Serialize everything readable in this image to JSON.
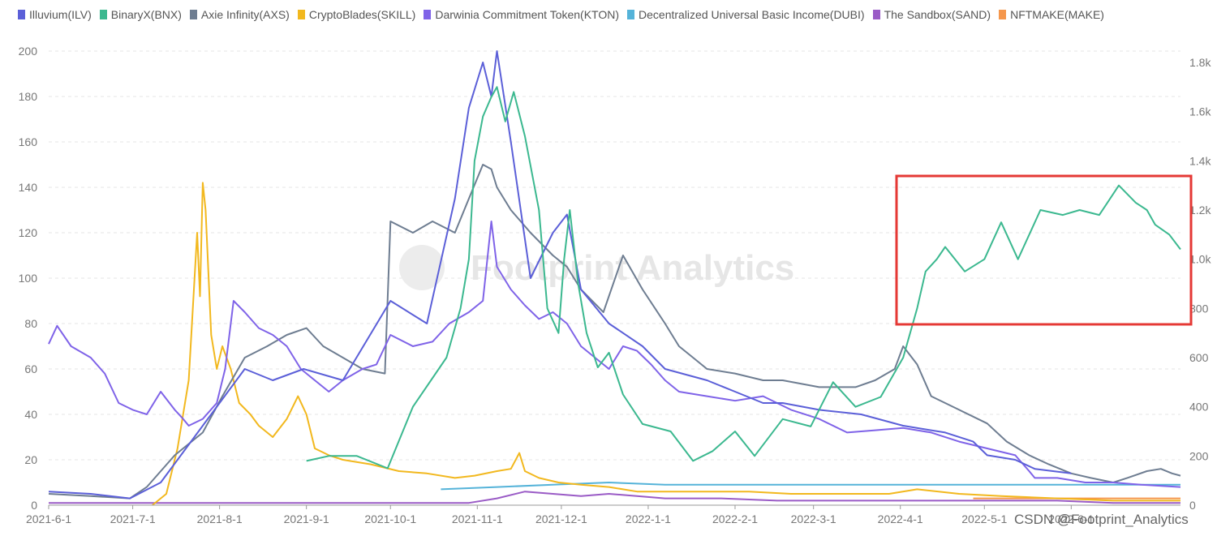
{
  "chart_data": {
    "type": "line",
    "x_labels": [
      "2021-6-1",
      "2021-7-1",
      "2021-8-1",
      "2021-9-1",
      "2021-10-1",
      "2021-11-1",
      "2021-12-1",
      "2022-1-1",
      "2022-2-1",
      "2022-3-1",
      "2022-4-1",
      "2022-5-1",
      "2022-6-1"
    ],
    "y_left": {
      "ticks": [
        "0",
        "20",
        "40",
        "60",
        "80",
        "100",
        "120",
        "140",
        "160",
        "180",
        "200"
      ],
      "range": [
        0,
        200
      ]
    },
    "y_right": {
      "ticks": [
        "0",
        "200",
        "400",
        "600",
        "800",
        "1.0k",
        "1.2k",
        "1.4k",
        "1.6k",
        "1.8k"
      ],
      "range": [
        0,
        1800
      ]
    },
    "grid": true,
    "legend_position": "top",
    "series": [
      {
        "name": "Illuvium(ILV)",
        "color": "#5b5fd8",
        "axis": "left",
        "points": [
          [
            0,
            6
          ],
          [
            15,
            5
          ],
          [
            29,
            3
          ],
          [
            40,
            10
          ],
          [
            55,
            35
          ],
          [
            70,
            60
          ],
          [
            80,
            55
          ],
          [
            91,
            60
          ],
          [
            105,
            55
          ],
          [
            122,
            90
          ],
          [
            135,
            80
          ],
          [
            145,
            135
          ],
          [
            150,
            175
          ],
          [
            155,
            195
          ],
          [
            158,
            180
          ],
          [
            160,
            200
          ],
          [
            165,
            160
          ],
          [
            172,
            100
          ],
          [
            180,
            120
          ],
          [
            185,
            128
          ],
          [
            190,
            95
          ],
          [
            200,
            80
          ],
          [
            212,
            70
          ],
          [
            220,
            60
          ],
          [
            235,
            55
          ],
          [
            245,
            50
          ],
          [
            255,
            45
          ],
          [
            262,
            45
          ],
          [
            275,
            42
          ],
          [
            290,
            40
          ],
          [
            305,
            35
          ],
          [
            320,
            32
          ],
          [
            330,
            28
          ],
          [
            335,
            22
          ],
          [
            345,
            20
          ],
          [
            352,
            16
          ],
          [
            365,
            14
          ]
        ]
      },
      {
        "name": "BinaryX(BNX)",
        "color": "#3bb88f",
        "axis": "right",
        "points": [
          [
            92,
            180
          ],
          [
            100,
            200
          ],
          [
            110,
            200
          ],
          [
            121,
            150
          ],
          [
            130,
            400
          ],
          [
            142,
            600
          ],
          [
            147,
            800
          ],
          [
            150,
            1000
          ],
          [
            152,
            1400
          ],
          [
            155,
            1580
          ],
          [
            158,
            1660
          ],
          [
            160,
            1700
          ],
          [
            163,
            1560
          ],
          [
            166,
            1680
          ],
          [
            170,
            1500
          ],
          [
            175,
            1200
          ],
          [
            178,
            800
          ],
          [
            182,
            700
          ],
          [
            184,
            1000
          ],
          [
            186,
            1200
          ],
          [
            189,
            900
          ],
          [
            192,
            700
          ],
          [
            196,
            560
          ],
          [
            200,
            620
          ],
          [
            205,
            450
          ],
          [
            212,
            330
          ],
          [
            222,
            300
          ],
          [
            230,
            180
          ],
          [
            237,
            220
          ],
          [
            245,
            300
          ],
          [
            252,
            200
          ],
          [
            262,
            350
          ],
          [
            272,
            320
          ],
          [
            280,
            500
          ],
          [
            288,
            400
          ],
          [
            297,
            440
          ],
          [
            305,
            600
          ],
          [
            310,
            800
          ],
          [
            313,
            950
          ],
          [
            317,
            1000
          ],
          [
            320,
            1050
          ],
          [
            327,
            950
          ],
          [
            334,
            1000
          ],
          [
            340,
            1150
          ],
          [
            346,
            1000
          ],
          [
            354,
            1200
          ],
          [
            362,
            1180
          ],
          [
            368,
            1200
          ],
          [
            375,
            1180
          ],
          [
            382,
            1300
          ],
          [
            388,
            1230
          ],
          [
            392,
            1200
          ],
          [
            395,
            1140
          ],
          [
            400,
            1100
          ],
          [
            404,
            1040
          ]
        ]
      },
      {
        "name": "Axie Infinity(AXS)",
        "color": "#6e7d91",
        "axis": "left",
        "points": [
          [
            0,
            5
          ],
          [
            15,
            4
          ],
          [
            29,
            3
          ],
          [
            35,
            8
          ],
          [
            45,
            22
          ],
          [
            55,
            32
          ],
          [
            62,
            48
          ],
          [
            70,
            65
          ],
          [
            78,
            70
          ],
          [
            85,
            75
          ],
          [
            92,
            78
          ],
          [
            98,
            70
          ],
          [
            105,
            65
          ],
          [
            112,
            60
          ],
          [
            120,
            58
          ],
          [
            122,
            125
          ],
          [
            130,
            120
          ],
          [
            137,
            125
          ],
          [
            145,
            120
          ],
          [
            150,
            135
          ],
          [
            155,
            150
          ],
          [
            158,
            148
          ],
          [
            160,
            140
          ],
          [
            165,
            130
          ],
          [
            172,
            120
          ],
          [
            180,
            110
          ],
          [
            185,
            105
          ],
          [
            190,
            95
          ],
          [
            198,
            85
          ],
          [
            205,
            110
          ],
          [
            212,
            95
          ],
          [
            220,
            80
          ],
          [
            225,
            70
          ],
          [
            230,
            65
          ],
          [
            235,
            60
          ],
          [
            245,
            58
          ],
          [
            255,
            55
          ],
          [
            262,
            55
          ],
          [
            275,
            52
          ],
          [
            288,
            52
          ],
          [
            295,
            55
          ],
          [
            302,
            60
          ],
          [
            305,
            70
          ],
          [
            310,
            62
          ],
          [
            315,
            48
          ],
          [
            325,
            42
          ],
          [
            335,
            36
          ],
          [
            342,
            28
          ],
          [
            350,
            22
          ],
          [
            357,
            18
          ],
          [
            365,
            14
          ],
          [
            372,
            12
          ],
          [
            380,
            10
          ],
          [
            385,
            12
          ],
          [
            392,
            15
          ],
          [
            397,
            16
          ],
          [
            401,
            14
          ],
          [
            404,
            13
          ]
        ]
      },
      {
        "name": "CryptoBlades(SKILL)",
        "color": "#f2b81e",
        "axis": "left",
        "points": [
          [
            37,
            0
          ],
          [
            42,
            5
          ],
          [
            46,
            25
          ],
          [
            50,
            55
          ],
          [
            53,
            120
          ],
          [
            54,
            92
          ],
          [
            55,
            142
          ],
          [
            56,
            130
          ],
          [
            58,
            75
          ],
          [
            60,
            60
          ],
          [
            62,
            70
          ],
          [
            65,
            60
          ],
          [
            68,
            45
          ],
          [
            72,
            40
          ],
          [
            75,
            35
          ],
          [
            80,
            30
          ],
          [
            85,
            38
          ],
          [
            89,
            48
          ],
          [
            92,
            40
          ],
          [
            95,
            25
          ],
          [
            100,
            22
          ],
          [
            105,
            20
          ],
          [
            115,
            18
          ],
          [
            125,
            15
          ],
          [
            135,
            14
          ],
          [
            145,
            12
          ],
          [
            152,
            13
          ],
          [
            160,
            15
          ],
          [
            165,
            16
          ],
          [
            168,
            23
          ],
          [
            170,
            15
          ],
          [
            175,
            12
          ],
          [
            182,
            10
          ],
          [
            190,
            9
          ],
          [
            200,
            8
          ],
          [
            210,
            6
          ],
          [
            220,
            6
          ],
          [
            235,
            6
          ],
          [
            250,
            6
          ],
          [
            265,
            5
          ],
          [
            285,
            5
          ],
          [
            300,
            5
          ],
          [
            310,
            7
          ],
          [
            325,
            5
          ],
          [
            340,
            4
          ],
          [
            360,
            3
          ],
          [
            380,
            2
          ],
          [
            404,
            2
          ]
        ]
      },
      {
        "name": "Darwinia Commitment Token(KTON)",
        "color": "#7f63e8",
        "axis": "left",
        "points": [
          [
            0,
            71
          ],
          [
            3,
            79
          ],
          [
            8,
            70
          ],
          [
            15,
            65
          ],
          [
            20,
            58
          ],
          [
            25,
            45
          ],
          [
            30,
            42
          ],
          [
            35,
            40
          ],
          [
            40,
            50
          ],
          [
            45,
            42
          ],
          [
            48,
            38
          ],
          [
            50,
            35
          ],
          [
            55,
            38
          ],
          [
            60,
            45
          ],
          [
            63,
            60
          ],
          [
            66,
            90
          ],
          [
            70,
            85
          ],
          [
            75,
            78
          ],
          [
            80,
            75
          ],
          [
            85,
            70
          ],
          [
            90,
            60
          ],
          [
            95,
            55
          ],
          [
            100,
            50
          ],
          [
            105,
            55
          ],
          [
            112,
            60
          ],
          [
            117,
            62
          ],
          [
            122,
            75
          ],
          [
            130,
            70
          ],
          [
            137,
            72
          ],
          [
            143,
            80
          ],
          [
            150,
            85
          ],
          [
            155,
            90
          ],
          [
            158,
            125
          ],
          [
            160,
            105
          ],
          [
            165,
            95
          ],
          [
            170,
            88
          ],
          [
            175,
            82
          ],
          [
            180,
            85
          ],
          [
            185,
            80
          ],
          [
            190,
            70
          ],
          [
            195,
            65
          ],
          [
            200,
            60
          ],
          [
            205,
            70
          ],
          [
            210,
            68
          ],
          [
            215,
            62
          ],
          [
            220,
            55
          ],
          [
            225,
            50
          ],
          [
            235,
            48
          ],
          [
            245,
            46
          ],
          [
            255,
            48
          ],
          [
            265,
            42
          ],
          [
            275,
            38
          ],
          [
            285,
            32
          ],
          [
            295,
            33
          ],
          [
            305,
            34
          ],
          [
            315,
            32
          ],
          [
            325,
            28
          ],
          [
            335,
            25
          ],
          [
            345,
            22
          ],
          [
            350,
            15
          ],
          [
            352,
            12
          ],
          [
            360,
            12
          ],
          [
            370,
            10
          ],
          [
            380,
            10
          ],
          [
            390,
            9
          ],
          [
            404,
            8
          ]
        ]
      },
      {
        "name": "Decentralized Universal Basic Income(DUBI)",
        "color": "#55b3d9",
        "axis": "left",
        "points": [
          [
            140,
            7
          ],
          [
            160,
            8
          ],
          [
            180,
            9
          ],
          [
            200,
            10
          ],
          [
            220,
            9
          ],
          [
            240,
            9
          ],
          [
            260,
            9
          ],
          [
            280,
            9
          ],
          [
            300,
            9
          ],
          [
            320,
            9
          ],
          [
            340,
            9
          ],
          [
            360,
            9
          ],
          [
            380,
            9
          ],
          [
            404,
            9
          ]
        ]
      },
      {
        "name": "The Sandbox(SAND)",
        "color": "#9a5bc6",
        "axis": "left",
        "points": [
          [
            0,
            1
          ],
          [
            40,
            1
          ],
          [
            80,
            1
          ],
          [
            120,
            1
          ],
          [
            150,
            1
          ],
          [
            160,
            3
          ],
          [
            170,
            6
          ],
          [
            180,
            5
          ],
          [
            190,
            4
          ],
          [
            200,
            5
          ],
          [
            210,
            4
          ],
          [
            220,
            3
          ],
          [
            230,
            3
          ],
          [
            240,
            3
          ],
          [
            260,
            2
          ],
          [
            280,
            2
          ],
          [
            300,
            2
          ],
          [
            320,
            2
          ],
          [
            340,
            2
          ],
          [
            360,
            2
          ],
          [
            380,
            1
          ],
          [
            404,
            1
          ]
        ]
      },
      {
        "name": "NFTMAKE(MAKE)",
        "color": "#f5974c",
        "axis": "left",
        "points": [
          [
            330,
            3
          ],
          [
            360,
            3
          ],
          [
            390,
            3
          ],
          [
            404,
            3
          ]
        ]
      }
    ]
  },
  "watermark": "Footprint Analytics",
  "credit": "CSDN @Footprint_Analytics"
}
